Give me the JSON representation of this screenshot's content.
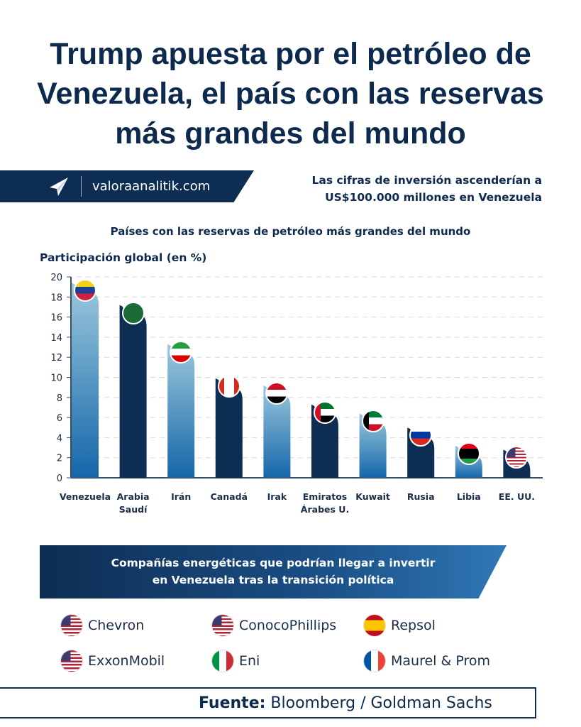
{
  "title_lines": [
    "Trump apuesta por el petróleo de",
    "Venezuela, el país con las reservas",
    "más grandes del mundo"
  ],
  "brand": {
    "site": "valoraanalitik.com"
  },
  "investment_note": [
    "Las cifras de inversión ascenderían a",
    "US$100.000 millones en Venezuela"
  ],
  "chart_data": {
    "type": "bar",
    "title": "Países con las reservas de petróleo más grandes del mundo",
    "ylabel": "Participación global (en %)",
    "xlabel": "",
    "ylim": [
      0,
      20
    ],
    "yticks": [
      "0",
      "2",
      "4",
      "6",
      "8",
      "10",
      "12",
      "14",
      "16",
      "18",
      "20"
    ],
    "grid": true,
    "categories": [
      "Venezuela",
      "Arabia Saudí",
      "Irán",
      "Canadá",
      "Irak",
      "Emiratos Árabes U.",
      "Kuwait",
      "Rusia",
      "Libia",
      "EE. UU."
    ],
    "category_lines": [
      [
        "Venezuela"
      ],
      [
        "Arabia",
        "Saudí"
      ],
      [
        "Irán"
      ],
      [
        "Canadá"
      ],
      [
        "Irak"
      ],
      [
        "Emiratos",
        "Árabes U."
      ],
      [
        "Kuwait"
      ],
      [
        "Rusia"
      ],
      [
        "Libia"
      ],
      [
        "EE. UU."
      ]
    ],
    "values": [
      19.4,
      17.2,
      13.3,
      9.9,
      9.2,
      7.3,
      6.4,
      5.0,
      3.2,
      2.8
    ],
    "bar_colors": [
      "#7fb5d3",
      "#0d2d52",
      "#7fb5d3",
      "#0d2d52",
      "#7fb5d3",
      "#0d2d52",
      "#7fb5d3",
      "#0d2d52",
      "#7fb5d3",
      "#0d2d52"
    ],
    "flag_icons": [
      "venezuela-flag-icon",
      "saudi-arabia-flag-icon",
      "iran-flag-icon",
      "canada-flag-icon",
      "iraq-flag-icon",
      "uae-flag-icon",
      "kuwait-flag-icon",
      "russia-flag-icon",
      "libya-flag-icon",
      "usa-flag-icon"
    ]
  },
  "companies_banner": [
    "Compañías energéticas que podrían llegar a invertir",
    "en Venezuela tras la transición política"
  ],
  "companies": [
    {
      "name": "Chevron",
      "flag": "usa-flag-icon"
    },
    {
      "name": "ConocoPhillips",
      "flag": "usa-flag-icon"
    },
    {
      "name": "Repsol",
      "flag": "spain-flag-icon"
    },
    {
      "name": "ExxonMobil",
      "flag": "usa-flag-icon"
    },
    {
      "name": "Eni",
      "flag": "italy-flag-icon"
    },
    {
      "name": "Maurel & Prom",
      "flag": "france-flag-icon"
    }
  ],
  "footer": {
    "label": "Fuente:",
    "text": " Bloomberg / Goldman Sachs"
  },
  "colors": {
    "navy": "#0d2d52",
    "light_bar": "#7fb5d3",
    "accent_blue": "#2f78b6"
  }
}
